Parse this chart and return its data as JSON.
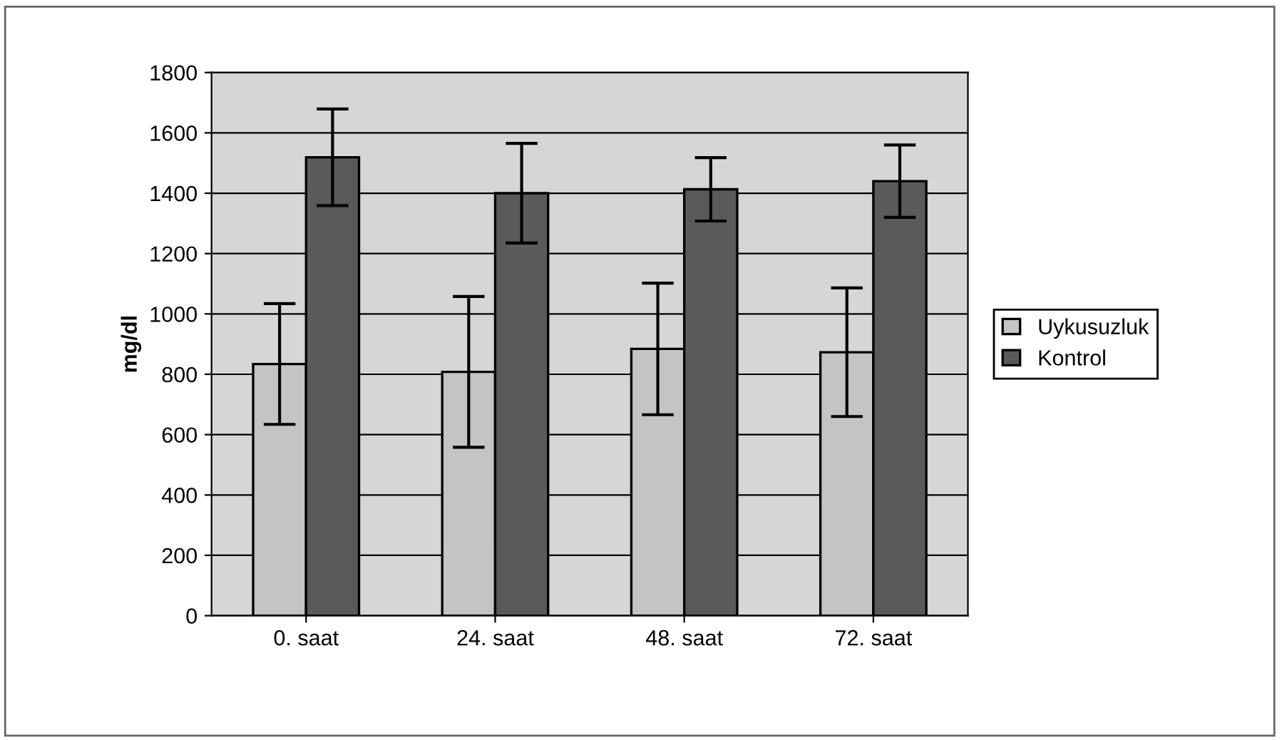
{
  "chart_data": {
    "type": "bar",
    "ylabel": "mg/dl",
    "categories": [
      "0. saat",
      "24. saat",
      "48. saat",
      "72. saat"
    ],
    "series": [
      {
        "name": "Uykusuzluk",
        "color": "#c4c4c4",
        "values": [
          834,
          808,
          884,
          873
        ],
        "errors": [
          200,
          250,
          218,
          213
        ]
      },
      {
        "name": "Kontrol",
        "color": "#5a5a5a",
        "values": [
          1519,
          1400,
          1413,
          1440
        ],
        "errors": [
          160,
          165,
          105,
          120
        ]
      }
    ],
    "ylim": [
      0,
      1800
    ],
    "yticks": [
      0,
      200,
      400,
      600,
      800,
      1000,
      1200,
      1400,
      1600,
      1800
    ],
    "grid": "y",
    "legend": "right"
  }
}
